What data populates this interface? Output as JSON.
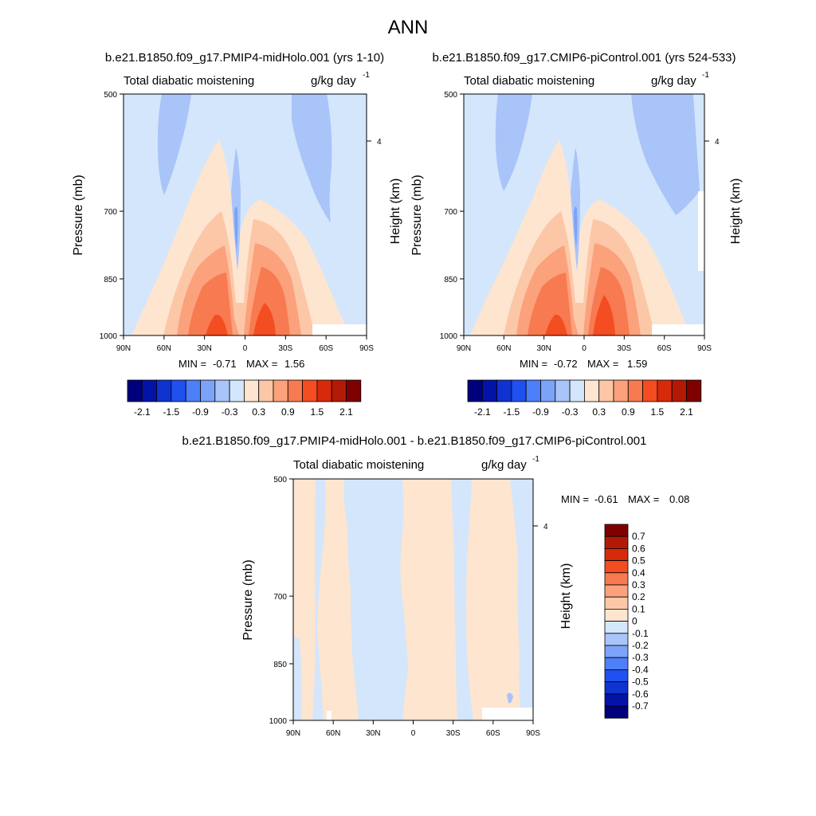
{
  "figure_title": "ANN",
  "panel_titles": {
    "test_case": "b.e21.B1850.f09_g17.PMIP4-midHolo.001 (yrs 1-10)",
    "control_case": "b.e21.B1850.f09_g17.CMIP6-piControl.001 (yrs 524-533)",
    "difference": "b.e21.B1850.f09_g17.PMIP4-midHolo.001 - b.e21.B1850.f09_g17.CMIP6-piControl.001"
  },
  "chart_data": [
    {
      "type": "heatmap",
      "panel": "test",
      "variable_label": "Total diabatic moistening",
      "units_label": "g/kg day",
      "units_superscript": "-1",
      "ylabel_left": "Pressure (mb)",
      "ylabel_right": "Height (km)",
      "x_ticks": [
        "90N",
        "60N",
        "30N",
        "0",
        "30S",
        "60S",
        "90S"
      ],
      "x_values": [
        90,
        60,
        30,
        0,
        -30,
        -60,
        -90
      ],
      "y_ticks": [
        "500",
        "700",
        "850",
        "1000"
      ],
      "y_values": [
        500,
        700,
        850,
        1000
      ],
      "height_ticks": [
        "4"
      ],
      "ylim": [
        1000,
        500
      ],
      "xlim": [
        90,
        -90
      ],
      "stats": {
        "min_label": "MIN =",
        "min": "-0.71",
        "max_label": "MAX =",
        "max": "1.56"
      },
      "colorbar": {
        "orientation": "horizontal",
        "labels": [
          "-2.1",
          "-1.5",
          "-0.9",
          "-0.3",
          "0.3",
          "0.9",
          "1.5",
          "2.1"
        ],
        "colors": [
          "#00007d",
          "#0313a8",
          "#0f33d0",
          "#2050f0",
          "#4d7ff8",
          "#7ca3f8",
          "#a9c4f8",
          "#d4e6fb",
          "#fde5d0",
          "#fcc7a7",
          "#fba17c",
          "#f87a51",
          "#f34d21",
          "#d62a0b",
          "#b21a05",
          "#800000"
        ]
      }
    },
    {
      "type": "heatmap",
      "panel": "control",
      "variable_label": "Total diabatic moistening",
      "units_label": "g/kg day",
      "units_superscript": "-1",
      "ylabel_left": "Pressure (mb)",
      "ylabel_right": "Height (km)",
      "x_ticks": [
        "90N",
        "60N",
        "30N",
        "0",
        "30S",
        "60S",
        "90S"
      ],
      "x_values": [
        90,
        60,
        30,
        0,
        -30,
        -60,
        -90
      ],
      "y_ticks": [
        "500",
        "700",
        "850",
        "1000"
      ],
      "y_values": [
        500,
        700,
        850,
        1000
      ],
      "height_ticks": [
        "4"
      ],
      "ylim": [
        1000,
        500
      ],
      "xlim": [
        90,
        -90
      ],
      "stats": {
        "min_label": "MIN =",
        "min": "-0.72",
        "max_label": "MAX =",
        "max": "1.59"
      },
      "colorbar": {
        "orientation": "horizontal",
        "labels": [
          "-2.1",
          "-1.5",
          "-0.9",
          "-0.3",
          "0.3",
          "0.9",
          "1.5",
          "2.1"
        ],
        "colors": [
          "#00007d",
          "#0313a8",
          "#0f33d0",
          "#2050f0",
          "#4d7ff8",
          "#7ca3f8",
          "#a9c4f8",
          "#d4e6fb",
          "#fde5d0",
          "#fcc7a7",
          "#fba17c",
          "#f87a51",
          "#f34d21",
          "#d62a0b",
          "#b21a05",
          "#800000"
        ]
      }
    },
    {
      "type": "heatmap",
      "panel": "difference",
      "variable_label": "Total diabatic moistening",
      "units_label": "g/kg day",
      "units_superscript": "-1",
      "ylabel_left": "Pressure (mb)",
      "ylabel_right": "Height (km)",
      "x_ticks": [
        "90N",
        "60N",
        "30N",
        "0",
        "30S",
        "60S",
        "90S"
      ],
      "x_values": [
        90,
        60,
        30,
        0,
        -30,
        -60,
        -90
      ],
      "y_ticks": [
        "500",
        "700",
        "850",
        "1000"
      ],
      "y_values": [
        500,
        700,
        850,
        1000
      ],
      "height_ticks": [
        "4"
      ],
      "ylim": [
        1000,
        500
      ],
      "xlim": [
        90,
        -90
      ],
      "stats": {
        "min_label": "MIN =",
        "min": "-0.61",
        "max_label": "MAX =",
        "max": "0.08"
      },
      "colorbar": {
        "orientation": "vertical",
        "labels": [
          "0.7",
          "0.6",
          "0.5",
          "0.4",
          "0.3",
          "0.2",
          "0.1",
          "0",
          "-0.1",
          "-0.2",
          "-0.3",
          "-0.4",
          "-0.5",
          "-0.6",
          "-0.7"
        ],
        "colors": [
          "#800000",
          "#b21a05",
          "#d62a0b",
          "#f34d21",
          "#f87a51",
          "#fba17c",
          "#fcc7a7",
          "#fde5d0",
          "#d4e6fb",
          "#a9c4f8",
          "#7ca3f8",
          "#4d7ff8",
          "#2050f0",
          "#0f33d0",
          "#0313a8",
          "#00007d"
        ]
      }
    }
  ]
}
